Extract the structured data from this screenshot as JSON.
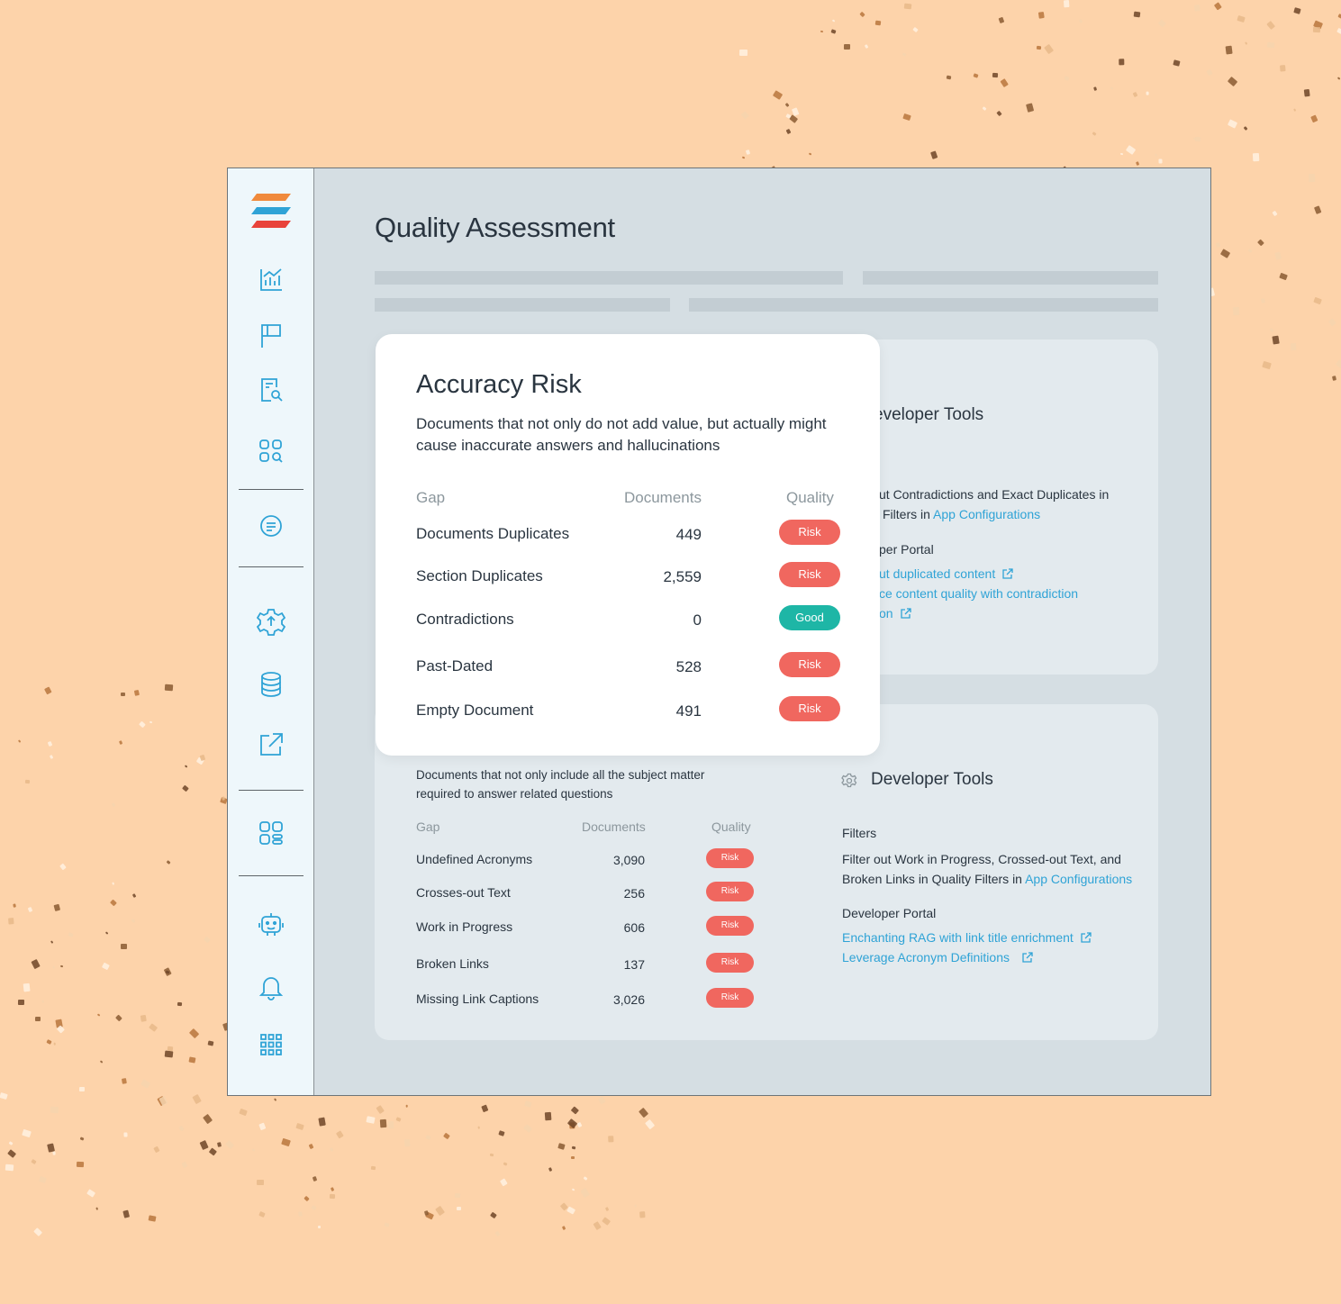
{
  "colors": {
    "background": "#FDD3AA",
    "accent": "#2FA3D6",
    "risk": "#F0675F",
    "good": "#1EB6A6",
    "logo_stripes": [
      "#F08A3C",
      "#2FA3D6",
      "#E8433A"
    ]
  },
  "sidebar": {
    "icons": [
      "analytics-icon",
      "flag-icon",
      "document-search-icon",
      "grid-search-icon",
      "chat-icon",
      "settings-gear-icon",
      "database-icon",
      "external-link-icon",
      "dashboard-icon",
      "robot-icon",
      "bell-icon",
      "apps-grid-icon"
    ]
  },
  "page": {
    "title": "Quality Assessment"
  },
  "accuracy_risk": {
    "title": "Accuracy Risk",
    "description": "Documents that not only do not add value, but actually might cause inaccurate answers and hallucinations",
    "headers": {
      "gap": "Gap",
      "documents": "Documents",
      "quality": "Quality"
    },
    "rows": [
      {
        "gap": "Documents Duplicates",
        "documents": "449",
        "quality": "Risk"
      },
      {
        "gap": "Section Duplicates",
        "documents": "2,559",
        "quality": "Risk"
      },
      {
        "gap": "Contradictions",
        "documents": "0",
        "quality": "Good"
      },
      {
        "gap": "Past-Dated",
        "documents": "528",
        "quality": "Risk"
      },
      {
        "gap": "Empty Document",
        "documents": "491",
        "quality": "Risk"
      }
    ]
  },
  "top_dev_tools": {
    "title_partial": "eveloper Tools",
    "filter_line1": "ut Contradictions and Exact Duplicates in",
    "filter_line2_prefix": "Filters in",
    "filter_link": "App Configurations",
    "portal_label": "per Portal",
    "links": [
      "ut duplicated content",
      "ce content quality with contradiction",
      "on"
    ]
  },
  "completeness": {
    "description": "Documents that not only include all the subject matter required to answer related questions",
    "headers": {
      "gap": "Gap",
      "documents": "Documents",
      "quality": "Quality"
    },
    "rows": [
      {
        "gap": "Undefined Acronyms",
        "documents": "3,090",
        "quality": "Risk"
      },
      {
        "gap": "Crosses-out Text",
        "documents": "256",
        "quality": "Risk"
      },
      {
        "gap": "Work in Progress",
        "documents": "606",
        "quality": "Risk"
      },
      {
        "gap": "Broken Links",
        "documents": "137",
        "quality": "Risk"
      },
      {
        "gap": "Missing Link Captions",
        "documents": "3,026",
        "quality": "Risk"
      }
    ]
  },
  "bottom_dev_tools": {
    "title": "Developer Tools",
    "filters_label": "Filters",
    "filter_line1": "Filter out Work in Progress, Crossed-out Text, and",
    "filter_line2_prefix": "Broken Links in Quality Filters in",
    "filter_link": "App Configurations",
    "portal_label": "Developer Portal",
    "links": [
      "Enchanting RAG with link title enrichment",
      "Leverage Acronym Definitions"
    ]
  }
}
